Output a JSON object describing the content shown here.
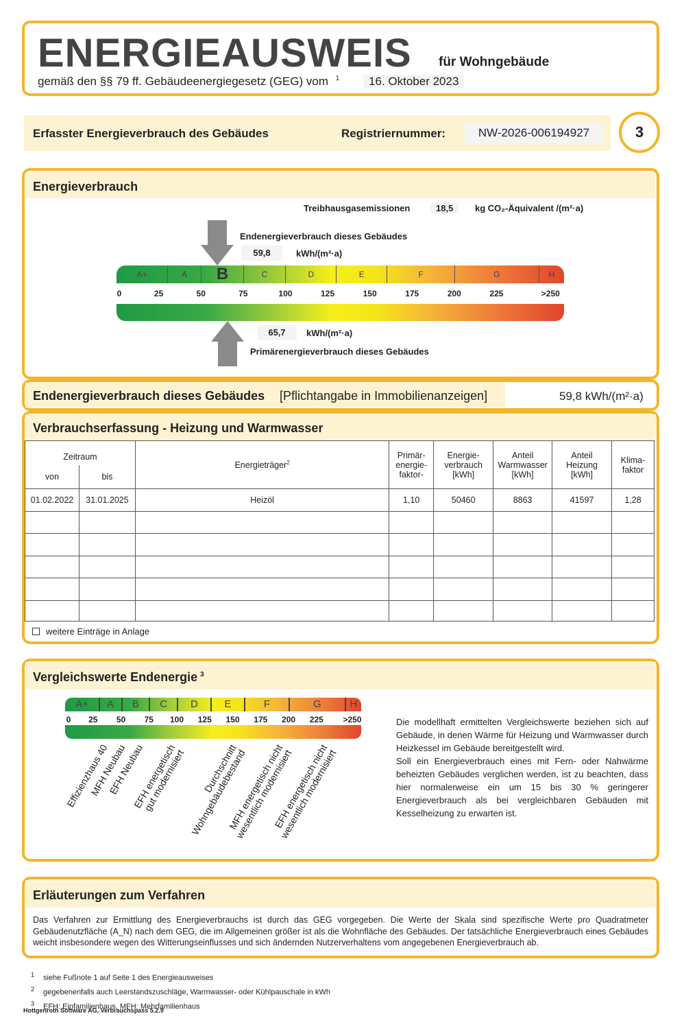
{
  "header": {
    "title": "ENERGIEAUSWEIS",
    "title_suffix": "für Wohngebäude",
    "subtitle": "gemäß den §§ 79 ff. Gebäudeenergiegesetz (GEG) vom",
    "subtitle_sup": "1",
    "date": "16. Oktober 2023"
  },
  "summary": {
    "label": "Erfasster Energieverbrauch des Gebäudes",
    "reg_label": "Registriernummer:",
    "reg_number": "NW-2026-006194927",
    "page_number": "3"
  },
  "energy": {
    "title": "Energieverbrauch",
    "ghg_label": "Treibhausgasemissionen",
    "ghg_value": "18,5",
    "ghg_unit": "kg CO₂-Äquivalent /(m²·a)",
    "end_label": "Endenergieverbrauch dieses Gebäudes",
    "end_value": "59,8",
    "end_unit": "kWh/(m²·a)",
    "primary_value": "65,7",
    "primary_unit": "kWh/(m²·a)",
    "primary_label": "Primärenergieverbrauch dieses Gebäudes",
    "end_value_num": 59.8,
    "primary_value_num": 65.7,
    "highlighted_class": "B",
    "classes": [
      {
        "label": "A+",
        "from": 0,
        "to": 30
      },
      {
        "label": "A",
        "from": 30,
        "to": 50
      },
      {
        "label": "B",
        "from": 50,
        "to": 75
      },
      {
        "label": "C",
        "from": 75,
        "to": 100
      },
      {
        "label": "D",
        "from": 100,
        "to": 130
      },
      {
        "label": "E",
        "from": 130,
        "to": 160
      },
      {
        "label": "F",
        "from": 160,
        "to": 200
      },
      {
        "label": "G",
        "from": 200,
        "to": 250
      },
      {
        "label": "H",
        "from": 250,
        "to": 265
      }
    ],
    "ticks": [
      "0",
      "25",
      "50",
      "75",
      "100",
      "125",
      "150",
      "175",
      "200",
      "225",
      ">250"
    ]
  },
  "end_row": {
    "label": "Endenergieverbrauch dieses Gebäudes",
    "note": "[Pflichtangabe in Immobilienanzeigen]",
    "value": "59,8 kWh/(m²·a)"
  },
  "consumption": {
    "title": "Verbrauchserfassung - Heizung und Warmwasser",
    "headers": {
      "period": "Zeitraum",
      "from": "von",
      "to": "bis",
      "carrier": "Energieträger",
      "carrier_sup": "2",
      "factor": "Primär-\nenergie-\nfaktor-",
      "energy": "Energie-\nverbrauch\n[kWh]",
      "water": "Anteil\nWarmwasser\n[kWh]",
      "heating": "Anteil\nHeizung\n[kWh]",
      "climate": "Klima-\nfaktor"
    },
    "rows": [
      {
        "from": "01.02.2022",
        "to": "31.01.2025",
        "carrier": "Heizöl",
        "factor": "1,10",
        "energy": "50460",
        "water": "8863",
        "heating": "41597",
        "climate": "1,28"
      }
    ],
    "more_label": "weitere Einträge in Anlage",
    "more_checked": false
  },
  "comparison": {
    "title": "Vergleichswerte Endenergie",
    "title_sup": "3",
    "classes": [
      "A+",
      "A",
      "B",
      "C",
      "D",
      "E",
      "F",
      "G",
      "H"
    ],
    "ticks": [
      "0",
      "25",
      "50",
      "75",
      "100",
      "125",
      "150",
      "175",
      "200",
      "225",
      ">250"
    ],
    "labels": [
      "Effizienzhaus 40",
      "MFH Neubau",
      "EFH Neubau",
      "EFH energetisch\ngut modernisiert",
      "Durchschnitt\nWohngebäudebestand",
      "MFH energetisch nicht\nwesentlich modernisiert",
      "EFH energetisch nicht\nwesentlich modernisiert"
    ],
    "text_1": "Die modellhaft ermittelten Vergleichswerte beziehen sich auf Gebäude, in denen Wärme für Heizung und Warmwasser durch Heizkessel im Gebäude bereitgestellt wird.",
    "text_2": "Soll ein Energieverbrauch eines mit Fern- oder Nahwärme beheizten Gebäudes verglichen werden, ist zu beachten, dass hier normalerweise ein um 15 bis 30 % geringerer Energieverbrauch als bei vergleichbaren Gebäuden mit Kesselheizung zu erwarten ist."
  },
  "explanation": {
    "title": "Erläuterungen zum Verfahren",
    "text": "Das Verfahren zur Ermittlung des Energieverbrauchs ist durch das GEG vorgegeben. Die Werte der Skala sind spezifische Werte pro Quadratmeter Gebäudenutzfläche (A_N) nach dem GEG, die im Allgemeinen größer ist als die Wohnfläche des Gebäudes. Der tatsächliche Energieverbrauch eines Gebäudes weicht insbesondere wegen des Witterungseinflusses und sich ändernden Nutzerverhaltens vom angegebenen Energieverbrauch ab."
  },
  "footnotes": [
    {
      "n": "1",
      "text": "siehe Fußnote 1 auf Seite 1 des Energieausweises"
    },
    {
      "n": "2",
      "text": "gegebenenfalls auch Leerstandszuschläge, Warmwasser- oder Kühlpauschale in kWh"
    },
    {
      "n": "3",
      "text": "EFH: Einfamilienhaus, MFH: Mehrfamilienhaus"
    }
  ],
  "software": "Hottgenroth Software AG, Verbrauchspass 5.2.9",
  "colors": {
    "border": "#f3b62a",
    "band": "#fdf3d2"
  }
}
